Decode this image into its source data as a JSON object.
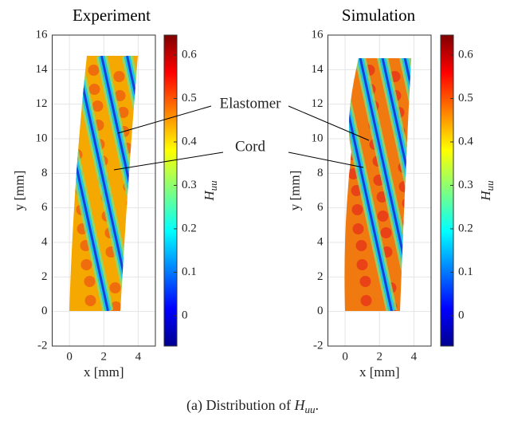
{
  "chart_data": [
    {
      "type": "heatmap",
      "title": "Experiment",
      "xlabel": "x [mm]",
      "ylabel": "y [mm]",
      "xlim": [
        -1,
        5
      ],
      "xticks": [
        0,
        2,
        4
      ],
      "ylim": [
        -2,
        16
      ],
      "yticks": [
        -2,
        0,
        2,
        4,
        6,
        8,
        10,
        12,
        14,
        16
      ],
      "grid": true,
      "colorbar_label": "H",
      "colorbar_label_sub": "uu",
      "clim": [
        -0.07,
        0.646
      ],
      "cticks": [
        0,
        0.1,
        0.2,
        0.3,
        0.4,
        0.5,
        0.6
      ],
      "colormap": "jet"
    },
    {
      "type": "heatmap",
      "title": "Simulation",
      "xlabel": "x [mm]",
      "ylabel": "y [mm]",
      "xlim": [
        -1,
        5
      ],
      "xticks": [
        0,
        2,
        4
      ],
      "ylim": [
        -2,
        16
      ],
      "yticks": [
        -2,
        0,
        2,
        4,
        6,
        8,
        10,
        12,
        14,
        16
      ],
      "grid": true,
      "colorbar_label": "H",
      "colorbar_label_sub": "uu",
      "clim": [
        -0.07,
        0.646
      ],
      "cticks": [
        0,
        0.1,
        0.2,
        0.3,
        0.4,
        0.5,
        0.6
      ],
      "colormap": "jet"
    }
  ],
  "annotations": [
    "Elastomer",
    "Cord"
  ],
  "caption_parts": [
    "(a) Distribution of ",
    "H",
    "uu",
    "."
  ]
}
